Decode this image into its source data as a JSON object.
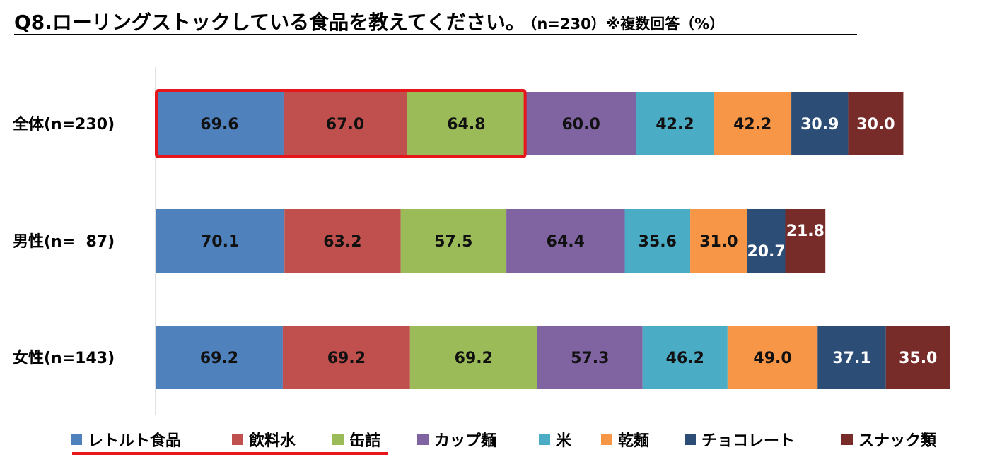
{
  "title": "Q8.ローリングストックしている食品を教えてください。",
  "subtitle": "（n=230）※複数回答（%）",
  "chart_data": {
    "type": "bar",
    "orientation": "horizontal",
    "stacked": true,
    "categories": [
      "全体(n=230)",
      "男性(n=  87)",
      "女性(n=143)"
    ],
    "series": [
      {
        "name": "レトルト食品",
        "color": "#4f81bd",
        "values": [
          69.6,
          70.1,
          69.2
        ]
      },
      {
        "name": "飲料水",
        "color": "#c0504d",
        "values": [
          67.0,
          63.2,
          69.2
        ]
      },
      {
        "name": "缶詰",
        "color": "#9bbb59",
        "values": [
          64.8,
          57.5,
          69.2
        ]
      },
      {
        "name": "カップ麺",
        "color": "#8064a2",
        "values": [
          60.0,
          64.4,
          57.3
        ]
      },
      {
        "name": "米",
        "color": "#4bacc6",
        "values": [
          42.2,
          35.6,
          46.2
        ]
      },
      {
        "name": "乾麺",
        "color": "#f79646",
        "values": [
          42.2,
          31.0,
          49.0
        ]
      },
      {
        "name": "チョコレート",
        "color": "#2c4d75",
        "values": [
          30.9,
          20.7,
          37.1
        ]
      },
      {
        "name": "スナック類",
        "color": "#772c2a",
        "values": [
          30.0,
          21.8,
          35.0
        ]
      }
    ],
    "legend_position": "bottom",
    "highlight": {
      "category_index": 0,
      "series_indices": [
        0,
        1,
        2
      ],
      "color": "#e8161b"
    },
    "grid": false
  }
}
